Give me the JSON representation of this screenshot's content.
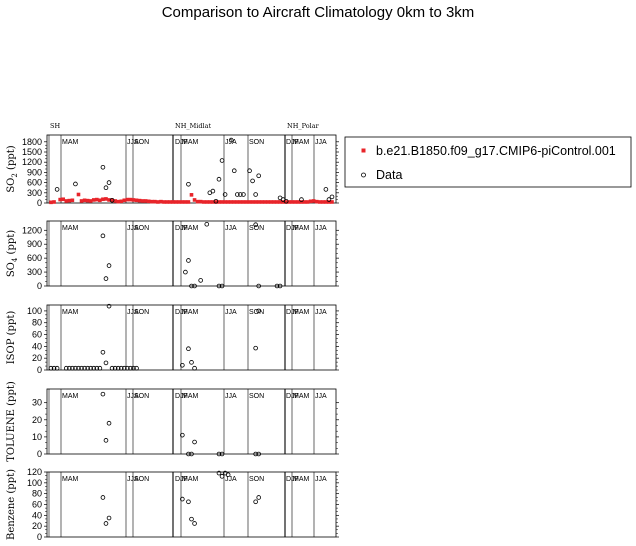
{
  "title": "Comparison to Aircraft Climatology  0km to 3km",
  "legend": [
    {
      "label": "b.e21.B1850.f09_g17.CMIP6-piControl.001",
      "marker": "square",
      "color": "#e8242a"
    },
    {
      "label": "Data",
      "marker": "open-circle",
      "color": "#000000"
    }
  ],
  "regions": [
    "SH",
    "NH_Midlat",
    "NH_Polar"
  ],
  "chart_data": [
    {
      "type": "scatter",
      "ylabel": "SO",
      "ylabel_sub": "2",
      "ylabel_unit": "(ppt)",
      "ylim": [
        0,
        2000
      ],
      "yticks": [
        0,
        300,
        600,
        900,
        1200,
        1500,
        1800
      ],
      "season_labels": [
        "MAM",
        "JJA",
        "SON",
        "DJF",
        "MAM",
        "JJA",
        "SON",
        "DJF",
        "MAM",
        "JJA"
      ],
      "series": [
        {
          "name": "b.e21.B1850.f09_g17.CMIP6-piControl.001",
          "marker": "square",
          "x": [
            0,
            1,
            3,
            4,
            5,
            6,
            7,
            9,
            10,
            11,
            12,
            13,
            14,
            15,
            16,
            17,
            18,
            19,
            20,
            21,
            22,
            23,
            24,
            25,
            26,
            27,
            28,
            29,
            30,
            31,
            32,
            33,
            34,
            35,
            36,
            37,
            38,
            39,
            40,
            41,
            42,
            43,
            44,
            45,
            46,
            47,
            48,
            49,
            50,
            51,
            52,
            53,
            54,
            55,
            56,
            57,
            58,
            59,
            60,
            61,
            62,
            63,
            64,
            65,
            66,
            67,
            68,
            69,
            70,
            71,
            72,
            73,
            74,
            75,
            76,
            77,
            78,
            79,
            80,
            81,
            82,
            83,
            84,
            85,
            86,
            87,
            88,
            89,
            90,
            91,
            92
          ],
          "y": [
            20,
            30,
            100,
            110,
            60,
            70,
            80,
            250,
            60,
            80,
            70,
            60,
            90,
            100,
            80,
            110,
            120,
            90,
            80,
            60,
            40,
            50,
            80,
            100,
            100,
            90,
            80,
            70,
            60,
            60,
            50,
            40,
            40,
            30,
            40,
            30,
            30,
            30,
            30,
            30,
            30,
            30,
            30,
            30,
            240,
            90,
            40,
            40,
            30,
            30,
            30,
            30,
            30,
            30,
            30,
            30,
            30,
            30,
            30,
            30,
            30,
            30,
            30,
            30,
            30,
            30,
            30,
            30,
            30,
            30,
            30,
            30,
            30,
            30,
            30,
            30,
            30,
            30,
            30,
            30,
            30,
            30,
            30,
            50,
            60,
            40,
            30,
            30,
            30,
            30,
            30
          ]
        },
        {
          "name": "Data",
          "marker": "circle",
          "x": [
            2,
            8,
            17,
            18,
            19,
            20,
            45,
            52,
            53,
            54,
            55,
            56,
            57,
            59,
            60,
            61,
            62,
            63,
            65,
            66,
            67,
            68,
            75,
            76,
            77,
            82,
            90,
            91,
            92
          ],
          "y": [
            400,
            560,
            1050,
            450,
            600,
            80,
            550,
            300,
            350,
            50,
            700,
            1250,
            250,
            1850,
            950,
            250,
            250,
            250,
            950,
            650,
            250,
            800,
            150,
            100,
            50,
            100,
            400,
            100,
            180
          ]
        }
      ]
    },
    {
      "type": "scatter",
      "ylabel": "SO",
      "ylabel_sub": "4",
      "ylabel_unit": "(ppt)",
      "ylim": [
        0,
        1400
      ],
      "yticks": [
        0,
        300,
        600,
        900,
        1200
      ],
      "season_labels": [
        "MAM",
        "JJA",
        "SON",
        "DJF",
        "MAM",
        "JJA",
        "SON",
        "DJF",
        "MAM",
        "JJA"
      ],
      "series": [
        {
          "name": "Data",
          "marker": "circle",
          "x": [
            17,
            18,
            19,
            44,
            45,
            46,
            47,
            49,
            51,
            55,
            56,
            67,
            68,
            74,
            75
          ],
          "y": [
            1080,
            160,
            440,
            300,
            550,
            0,
            0,
            120,
            1330,
            0,
            0,
            1320,
            0,
            0,
            0
          ]
        }
      ]
    },
    {
      "type": "scatter",
      "ylabel": "ISOP",
      "ylabel_unit": "(ppt)",
      "ylim": [
        0,
        110
      ],
      "yticks": [
        0,
        20,
        40,
        60,
        80,
        100
      ],
      "season_labels": [
        "MAM",
        "JJA",
        "SON",
        "DJF",
        "MAM",
        "JJA",
        "SON",
        "DJF",
        "MAM",
        "JJA"
      ],
      "series": [
        {
          "name": "Data",
          "marker": "circle",
          "x": [
            0,
            1,
            2,
            5,
            6,
            7,
            8,
            9,
            10,
            11,
            12,
            13,
            14,
            15,
            16,
            17,
            18,
            19,
            20,
            21,
            22,
            23,
            24,
            25,
            26,
            27,
            28,
            43,
            45,
            46,
            47,
            67,
            68
          ],
          "y": [
            3,
            3,
            3,
            3,
            3,
            3,
            3,
            3,
            3,
            3,
            3,
            3,
            3,
            3,
            3,
            30,
            12,
            108,
            3,
            3,
            3,
            3,
            3,
            3,
            3,
            3,
            3,
            8,
            36,
            13,
            3,
            37,
            100
          ]
        }
      ]
    },
    {
      "type": "scatter",
      "ylabel": "TOLUENE",
      "ylabel_unit": "(ppt)",
      "ylim": [
        0,
        38
      ],
      "yticks": [
        0,
        10,
        20,
        30
      ],
      "season_labels": [
        "MAM",
        "JJA",
        "SON",
        "DJF",
        "MAM",
        "JJA",
        "SON",
        "DJF",
        "MAM",
        "JJA"
      ],
      "series": [
        {
          "name": "Data",
          "marker": "circle",
          "x": [
            17,
            18,
            19,
            43,
            45,
            46,
            47,
            55,
            56,
            67,
            68
          ],
          "y": [
            35,
            8,
            18,
            11,
            0,
            0,
            7,
            0,
            0,
            0,
            0
          ]
        }
      ]
    },
    {
      "type": "scatter",
      "ylabel": "Benzene",
      "ylabel_unit": "(ppt)",
      "ylim": [
        0,
        120
      ],
      "yticks": [
        0,
        20,
        40,
        60,
        80,
        100,
        120
      ],
      "season_labels": [
        "MAM",
        "JJA",
        "SON",
        "DJF",
        "MAM",
        "JJA",
        "SON",
        "DJF",
        "MAM",
        "JJA"
      ],
      "series": [
        {
          "name": "Data",
          "marker": "circle",
          "x": [
            17,
            18,
            19,
            43,
            45,
            46,
            47,
            55,
            56,
            57,
            58,
            67,
            68
          ],
          "y": [
            73,
            25,
            35,
            70,
            65,
            33,
            25,
            118,
            112,
            118,
            115,
            65,
            73
          ]
        }
      ]
    }
  ]
}
